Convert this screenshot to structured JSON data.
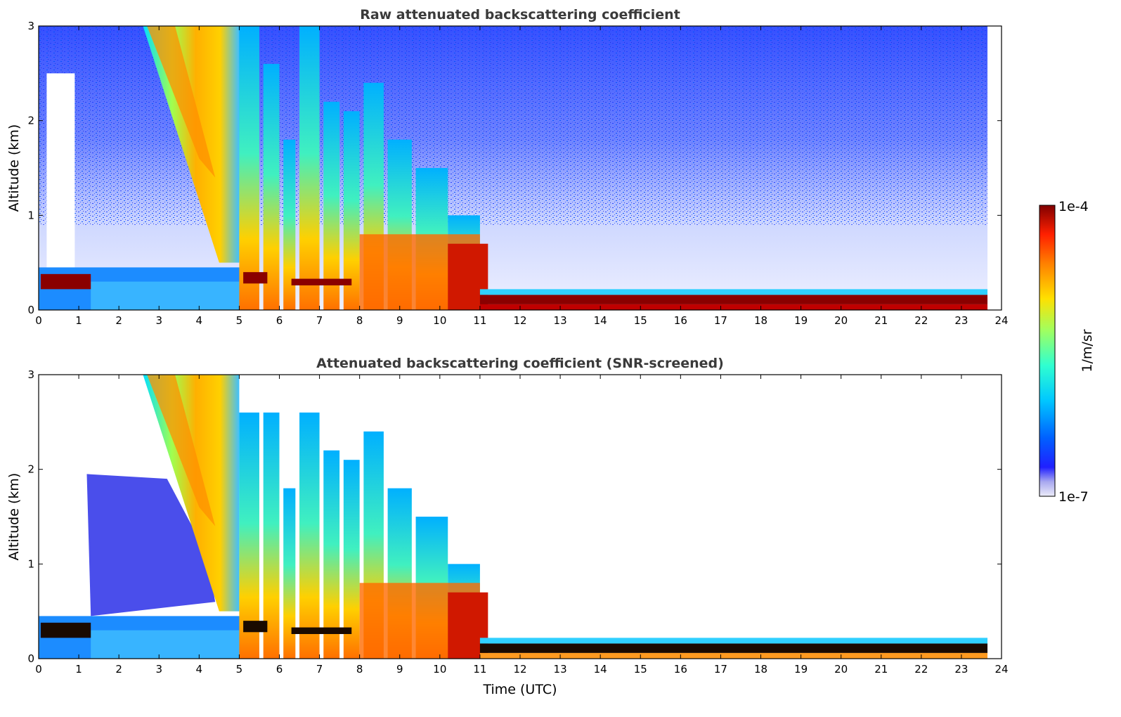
{
  "chart_data": [
    {
      "type": "heatmap",
      "title": "Raw attenuated backscattering coefficient",
      "xlabel": "",
      "ylabel": "Altitude (km)",
      "xlim": [
        0,
        24
      ],
      "ylim": [
        0,
        3
      ],
      "x_ticks": [
        "0",
        "1",
        "2",
        "3",
        "4",
        "5",
        "6",
        "7",
        "8",
        "9",
        "10",
        "11",
        "12",
        "13",
        "14",
        "15",
        "16",
        "17",
        "18",
        "19",
        "20",
        "21",
        "22",
        "23",
        "24"
      ],
      "y_ticks": [
        "0",
        "1",
        "2",
        "3"
      ],
      "data_extent_hours": [
        0,
        23.65
      ],
      "features": [
        {
          "desc": "dense low cloud/aerosol layer",
          "x": [
            0.05,
            1.3
          ],
          "y": [
            0.05,
            0.4
          ],
          "value": "1e-4"
        },
        {
          "desc": "thin layer tops",
          "x": [
            5.1,
            5.7
          ],
          "y": [
            0.25,
            0.45
          ],
          "value": "1e-4"
        },
        {
          "desc": "thin layer tops",
          "x": [
            6.3,
            7.8
          ],
          "y": [
            0.25,
            0.35
          ],
          "value": "1e-4"
        },
        {
          "desc": "inclined precipitation band",
          "x": [
            2.6,
            5.0
          ],
          "y": [
            0.4,
            3.0
          ],
          "value": "high"
        },
        {
          "desc": "convective columns",
          "x": [
            5.0,
            10.2
          ],
          "y": [
            0,
            3.0
          ],
          "value": "high"
        },
        {
          "desc": "boundary layer top",
          "x": [
            11.0,
            23.65
          ],
          "y": [
            0.05,
            0.2
          ],
          "value": "1e-4"
        }
      ]
    },
    {
      "type": "heatmap",
      "title": "Attenuated backscattering coefficient (SNR-screened)",
      "xlabel": "Time (UTC)",
      "ylabel": "Altitude (km)",
      "xlim": [
        0,
        24
      ],
      "ylim": [
        0,
        3
      ],
      "x_ticks": [
        "0",
        "1",
        "2",
        "3",
        "4",
        "5",
        "6",
        "7",
        "8",
        "9",
        "10",
        "11",
        "12",
        "13",
        "14",
        "15",
        "16",
        "17",
        "18",
        "19",
        "20",
        "21",
        "22",
        "23",
        "24"
      ],
      "y_ticks": [
        "0",
        "1",
        "2",
        "3"
      ],
      "data_extent_hours": [
        0,
        23.65
      ],
      "screening": "noisy pixels removed (white)"
    }
  ],
  "colorbar": {
    "label": "1/m/sr",
    "max_label": "1e-4",
    "min_label": "1e-7",
    "scale": "log",
    "colormap": "jet"
  }
}
